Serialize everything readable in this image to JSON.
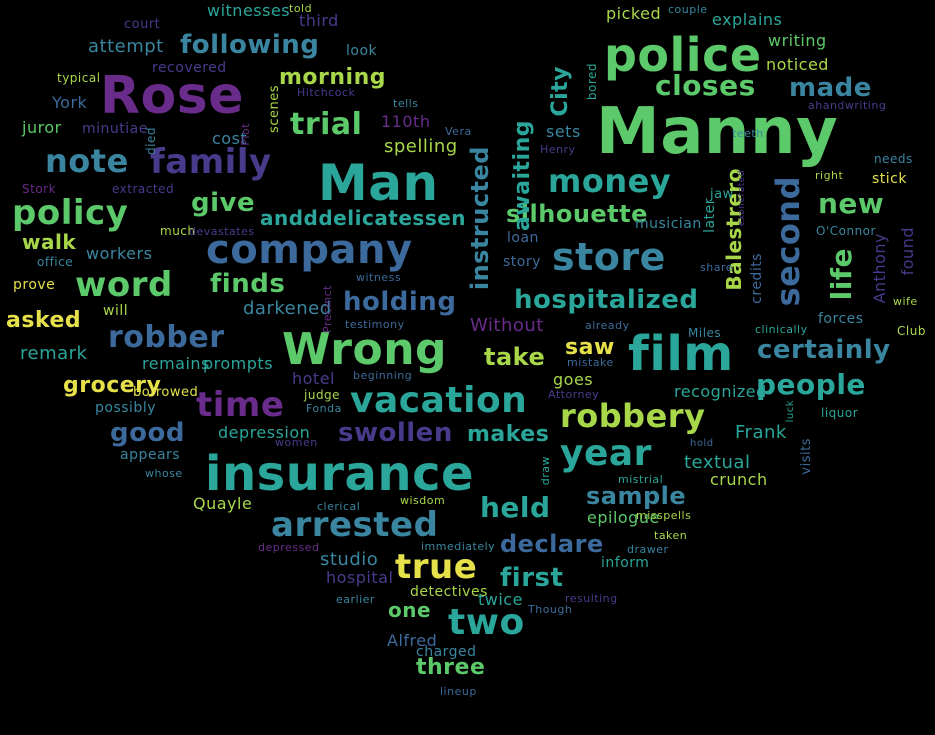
{
  "palette": {
    "background": "#000000",
    "purple": "#6a2c8a",
    "indigo": "#4a3a8c",
    "blue": "#3d6a9c",
    "steel": "#3a86a0",
    "teal": "#2aa69a",
    "green": "#5cc96a",
    "lime": "#a8d84a",
    "yellow": "#e6e14a"
  },
  "words": [
    {
      "t": "Manny",
      "c": "green"
    },
    {
      "t": "insurance",
      "c": "teal"
    },
    {
      "t": "Man",
      "c": "teal"
    },
    {
      "t": "Rose",
      "c": "purple"
    },
    {
      "t": "Wrong",
      "c": "green"
    },
    {
      "t": "film",
      "c": "teal"
    },
    {
      "t": "police",
      "c": "green"
    },
    {
      "t": "company",
      "c": "blue"
    },
    {
      "t": "store",
      "c": "steel"
    },
    {
      "t": "money",
      "c": "teal"
    },
    {
      "t": "family",
      "c": "indigo"
    },
    {
      "t": "note",
      "c": "steel"
    },
    {
      "t": "policy",
      "c": "green"
    },
    {
      "t": "second",
      "c": "blue"
    },
    {
      "t": "vacation",
      "c": "teal"
    },
    {
      "t": "time",
      "c": "purple"
    },
    {
      "t": "robbery",
      "c": "lime"
    },
    {
      "t": "year",
      "c": "teal"
    },
    {
      "t": "arrested",
      "c": "steel"
    },
    {
      "t": "true",
      "c": "yellow"
    },
    {
      "t": "two",
      "c": "teal"
    },
    {
      "t": "robber",
      "c": "blue"
    },
    {
      "t": "word",
      "c": "green"
    },
    {
      "t": "trial",
      "c": "green"
    },
    {
      "t": "closes",
      "c": "green"
    },
    {
      "t": "following",
      "c": "steel"
    },
    {
      "t": "new",
      "c": "green"
    },
    {
      "t": "life",
      "c": "green"
    },
    {
      "t": "people",
      "c": "teal"
    },
    {
      "t": "certainly",
      "c": "steel"
    },
    {
      "t": "made",
      "c": "steel"
    },
    {
      "t": "holding",
      "c": "blue"
    },
    {
      "t": "hospitalized",
      "c": "teal"
    },
    {
      "t": "silhouette",
      "c": "green"
    },
    {
      "t": "swollen",
      "c": "indigo"
    },
    {
      "t": "good",
      "c": "blue"
    },
    {
      "t": "held",
      "c": "teal"
    },
    {
      "t": "declare",
      "c": "blue"
    },
    {
      "t": "first",
      "c": "teal"
    },
    {
      "t": "sample",
      "c": "steel"
    },
    {
      "t": "instructed",
      "c": "steel"
    },
    {
      "t": "awaiting",
      "c": "teal"
    },
    {
      "t": "Balestrero",
      "c": "lime"
    },
    {
      "t": "give",
      "c": "green"
    },
    {
      "t": "finds",
      "c": "green"
    },
    {
      "t": "morning",
      "c": "lime"
    },
    {
      "t": "take",
      "c": "lime"
    },
    {
      "t": "saw",
      "c": "yellow"
    },
    {
      "t": "makes",
      "c": "teal"
    },
    {
      "t": "grocery",
      "c": "yellow"
    },
    {
      "t": "asked",
      "c": "yellow"
    },
    {
      "t": "walk",
      "c": "lime"
    },
    {
      "t": "andddelicatessen",
      "c": "teal"
    },
    {
      "t": "City",
      "c": "teal"
    },
    {
      "t": "three",
      "c": "green"
    },
    {
      "t": "one",
      "c": "green"
    },
    {
      "t": "remark",
      "c": "teal"
    },
    {
      "t": "depression",
      "c": "teal"
    },
    {
      "t": "darkened",
      "c": "steel"
    },
    {
      "t": "workers",
      "c": "steel"
    },
    {
      "t": "prove",
      "c": "yellow"
    },
    {
      "t": "explains",
      "c": "teal"
    },
    {
      "t": "picked",
      "c": "lime"
    },
    {
      "t": "writing",
      "c": "green"
    },
    {
      "t": "noticed",
      "c": "lime"
    },
    {
      "t": "attempt",
      "c": "steel"
    },
    {
      "t": "recovered",
      "c": "indigo"
    },
    {
      "t": "witnesses",
      "c": "teal"
    },
    {
      "t": "court",
      "c": "indigo"
    },
    {
      "t": "third",
      "c": "indigo"
    },
    {
      "t": "look",
      "c": "steel"
    },
    {
      "t": "York",
      "c": "blue"
    },
    {
      "t": "juror",
      "c": "green"
    },
    {
      "t": "minutiae",
      "c": "indigo"
    },
    {
      "t": "cost",
      "c": "steel"
    },
    {
      "t": "spelling",
      "c": "lime"
    },
    {
      "t": "110th",
      "c": "purple"
    },
    {
      "t": "sets",
      "c": "steel"
    },
    {
      "t": "recognized",
      "c": "teal"
    },
    {
      "t": "goes",
      "c": "lime"
    },
    {
      "t": "Frank",
      "c": "teal"
    },
    {
      "t": "textual",
      "c": "teal"
    },
    {
      "t": "crunch",
      "c": "lime"
    },
    {
      "t": "epilogue",
      "c": "green"
    },
    {
      "t": "studio",
      "c": "steel"
    },
    {
      "t": "hospital",
      "c": "indigo"
    },
    {
      "t": "inform",
      "c": "teal"
    },
    {
      "t": "twice",
      "c": "teal"
    },
    {
      "t": "Alfred",
      "c": "blue"
    },
    {
      "t": "charged",
      "c": "steel"
    },
    {
      "t": "detectives",
      "c": "lime"
    },
    {
      "t": "Quayle",
      "c": "lime"
    },
    {
      "t": "appears",
      "c": "steel"
    },
    {
      "t": "hotel",
      "c": "indigo"
    },
    {
      "t": "prompts",
      "c": "teal"
    },
    {
      "t": "remains",
      "c": "teal"
    },
    {
      "t": "possibly",
      "c": "steel"
    },
    {
      "t": "Without",
      "c": "purple"
    },
    {
      "t": "stick",
      "c": "yellow"
    },
    {
      "t": "forces",
      "c": "steel"
    },
    {
      "t": "Anthony",
      "c": "indigo"
    },
    {
      "t": "found",
      "c": "indigo"
    },
    {
      "t": "credits",
      "c": "blue"
    },
    {
      "t": "later",
      "c": "teal"
    },
    {
      "t": "musician",
      "c": "steel"
    },
    {
      "t": "loan",
      "c": "blue"
    },
    {
      "t": "story",
      "c": "blue"
    },
    {
      "t": "will",
      "c": "lime"
    },
    {
      "t": "office",
      "c": "steel"
    },
    {
      "t": "much",
      "c": "lime"
    },
    {
      "t": "Stork",
      "c": "purple"
    },
    {
      "t": "extracted",
      "c": "indigo"
    },
    {
      "t": "devastates",
      "c": "indigo"
    },
    {
      "t": "died",
      "c": "steel"
    },
    {
      "t": "scenes",
      "c": "lime"
    },
    {
      "t": "typical",
      "c": "lime"
    },
    {
      "t": "told",
      "c": "lime"
    },
    {
      "t": "couple",
      "c": "steel"
    },
    {
      "t": "Hitchcock",
      "c": "indigo"
    },
    {
      "t": "tells",
      "c": "steel"
    },
    {
      "t": "Plot",
      "c": "purple"
    },
    {
      "t": "Vera",
      "c": "blue"
    },
    {
      "t": "Henry",
      "c": "indigo"
    },
    {
      "t": "bored",
      "c": "teal"
    },
    {
      "t": "teeth",
      "c": "steel"
    },
    {
      "t": "ahandwriting",
      "c": "indigo"
    },
    {
      "t": "needs",
      "c": "steel"
    },
    {
      "t": "right",
      "c": "lime"
    },
    {
      "t": "jaw",
      "c": "teal"
    },
    {
      "t": "exonerated",
      "c": "indigo"
    },
    {
      "t": "O'Connor",
      "c": "steel"
    },
    {
      "t": "share",
      "c": "blue"
    },
    {
      "t": "witness",
      "c": "blue"
    },
    {
      "t": "Precinct",
      "c": "purple"
    },
    {
      "t": "testimony",
      "c": "blue"
    },
    {
      "t": "already",
      "c": "blue"
    },
    {
      "t": "Miles",
      "c": "steel"
    },
    {
      "t": "clinically",
      "c": "teal"
    },
    {
      "t": "Club",
      "c": "lime"
    },
    {
      "t": "wife",
      "c": "lime"
    },
    {
      "t": "borrowed",
      "c": "yellow"
    },
    {
      "t": "beginning",
      "c": "blue"
    },
    {
      "t": "judge",
      "c": "lime"
    },
    {
      "t": "Fonda",
      "c": "steel"
    },
    {
      "t": "mistake",
      "c": "blue"
    },
    {
      "t": "Attorney",
      "c": "indigo"
    },
    {
      "t": "luck",
      "c": "teal"
    },
    {
      "t": "liquor",
      "c": "teal"
    },
    {
      "t": "visits",
      "c": "blue"
    },
    {
      "t": "women",
      "c": "indigo"
    },
    {
      "t": "hold",
      "c": "blue"
    },
    {
      "t": "whose",
      "c": "steel"
    },
    {
      "t": "draw",
      "c": "teal"
    },
    {
      "t": "mistrial",
      "c": "teal"
    },
    {
      "t": "clerical",
      "c": "steel"
    },
    {
      "t": "wisdom",
      "c": "lime"
    },
    {
      "t": "misspells",
      "c": "lime"
    },
    {
      "t": "taken",
      "c": "lime"
    },
    {
      "t": "drawer",
      "c": "steel"
    },
    {
      "t": "depressed",
      "c": "purple"
    },
    {
      "t": "immediately",
      "c": "steel"
    },
    {
      "t": "earlier",
      "c": "steel"
    },
    {
      "t": "resulting",
      "c": "indigo"
    },
    {
      "t": "Though",
      "c": "blue"
    },
    {
      "t": "lineup",
      "c": "blue"
    }
  ]
}
